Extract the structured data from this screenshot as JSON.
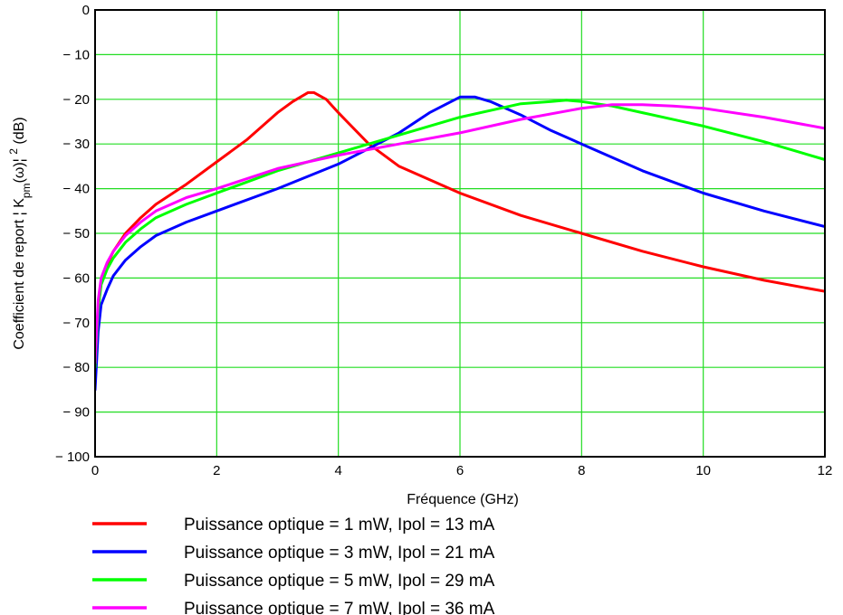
{
  "chart_data": {
    "type": "line",
    "title": "",
    "xlabel": "Fréquence (GHz)",
    "ylabel_parts": [
      "Coefficient de report ¦ K",
      "pm",
      "(ω)¦ ",
      "2",
      " (dB)"
    ],
    "xlim": [
      0,
      12
    ],
    "ylim": [
      -100,
      0
    ],
    "x_ticks": [
      0,
      2,
      4,
      6,
      8,
      10,
      12
    ],
    "x_tick_labels": [
      "0",
      "2",
      "4",
      "6",
      "8",
      "10",
      "12"
    ],
    "y_ticks": [
      0,
      -10,
      -20,
      -30,
      -40,
      -50,
      -60,
      -70,
      -80,
      -90,
      -100
    ],
    "y_tick_labels": [
      "0",
      "− 10",
      "− 20",
      "− 30",
      "− 40",
      "− 50",
      "− 60",
      "− 70",
      "− 80",
      "− 90",
      "− 100"
    ],
    "grid": true,
    "grid_color": "#22dd22",
    "legend_position": "bottom",
    "series": [
      {
        "name": "Puissance optique = 1 mW, Ipol = 13 mA",
        "color": "#ff0000",
        "x": [
          0,
          0.05,
          0.1,
          0.2,
          0.3,
          0.5,
          0.75,
          1,
          1.5,
          2,
          2.5,
          3,
          3.25,
          3.5,
          3.6,
          3.8,
          4,
          4.5,
          5,
          6,
          7,
          8,
          9,
          10,
          11,
          12
        ],
        "y": [
          -82,
          -67,
          -61,
          -57,
          -54,
          -50,
          -46.5,
          -43.5,
          -39,
          -34,
          -29,
          -23,
          -20.5,
          -18.5,
          -18.5,
          -20,
          -23,
          -30,
          -35,
          -41,
          -46,
          -50,
          -54,
          -57.5,
          -60.5,
          -63
        ]
      },
      {
        "name": "Puissance optique = 3 mW, Ipol = 21 mA",
        "color": "#0000ff",
        "x": [
          0,
          0.05,
          0.1,
          0.2,
          0.3,
          0.5,
          0.75,
          1,
          1.5,
          2,
          3,
          4,
          5,
          5.5,
          6,
          6.25,
          6.5,
          7,
          7.5,
          8,
          9,
          10,
          11,
          12
        ],
        "y": [
          -85,
          -72,
          -66,
          -62.5,
          -59.5,
          -56,
          -53,
          -50.5,
          -47.5,
          -45,
          -40,
          -34.5,
          -27.5,
          -23,
          -19.5,
          -19.5,
          -20.5,
          -23.5,
          -27,
          -30,
          -36,
          -41,
          -45,
          -48.5
        ]
      },
      {
        "name": "Puissance optique = 5 mW, Ipol = 29 mA",
        "color": "#00ff00",
        "x": [
          0,
          0.05,
          0.1,
          0.2,
          0.3,
          0.5,
          0.75,
          1,
          1.5,
          2,
          3,
          4,
          5,
          6,
          7,
          7.5,
          7.75,
          8,
          8.5,
          9,
          10,
          11,
          12
        ],
        "y": [
          -80,
          -67,
          -61.5,
          -58,
          -55.5,
          -52,
          -49,
          -46.5,
          -43.5,
          -41,
          -36,
          -32,
          -28,
          -24,
          -21,
          -20.5,
          -20.2,
          -20.5,
          -21.5,
          -23,
          -26,
          -29.5,
          -33.5
        ]
      },
      {
        "name": "Puissance optique = 7 mW, Ipol = 36 mA",
        "color": "#ff00ff",
        "x": [
          0,
          0.05,
          0.1,
          0.2,
          0.3,
          0.5,
          0.75,
          1,
          1.5,
          2,
          3,
          4,
          5,
          6,
          7,
          8,
          8.5,
          9,
          9.5,
          10,
          11,
          12
        ],
        "y": [
          -79,
          -65,
          -60,
          -56.5,
          -54,
          -50.5,
          -47.5,
          -45,
          -42,
          -40,
          -35.5,
          -32.5,
          -30,
          -27.5,
          -24.5,
          -22,
          -21.2,
          -21.2,
          -21.5,
          -22,
          -24,
          -26.5
        ]
      }
    ]
  }
}
